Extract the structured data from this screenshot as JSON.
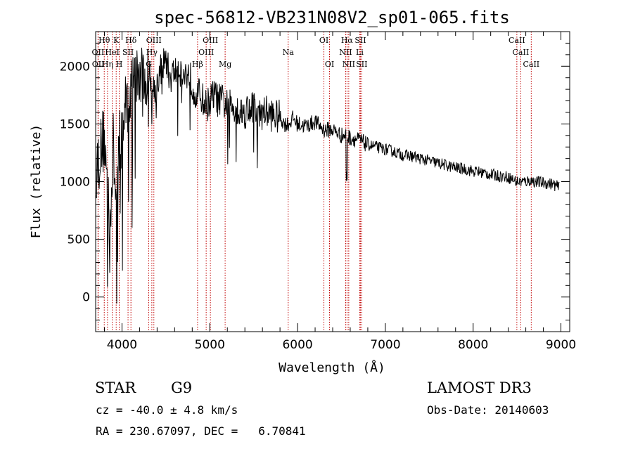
{
  "chart_data": {
    "type": "line",
    "title": "spec-56812-VB231N08V2_sp01-065.fits",
    "xlabel": "Wavelength (Å)",
    "ylabel": "Flux (relative)",
    "xlim": [
      3700,
      9100
    ],
    "ylim": [
      -300,
      2300
    ],
    "xticks": [
      4000,
      5000,
      6000,
      7000,
      8000,
      9000
    ],
    "yticks": [
      0,
      500,
      1000,
      1500,
      2000
    ],
    "series": [
      {
        "name": "flux",
        "x": [
          3700,
          3750,
          3800,
          3850,
          3880,
          3900,
          3930,
          3960,
          4000,
          4050,
          4100,
          4150,
          4200,
          4250,
          4300,
          4350,
          4400,
          4450,
          4500,
          4550,
          4600,
          4650,
          4700,
          4750,
          4800,
          4850,
          4900,
          4950,
          5000,
          5050,
          5100,
          5150,
          5200,
          5250,
          5300,
          5350,
          5400,
          5450,
          5500,
          5550,
          5600,
          5650,
          5700,
          5750,
          5800,
          5850,
          5900,
          5950,
          6000,
          6100,
          6200,
          6300,
          6400,
          6500,
          6550,
          6600,
          6700,
          6800,
          6900,
          7000,
          7100,
          7200,
          7300,
          7400,
          7500,
          7600,
          7700,
          7800,
          7900,
          8000,
          8100,
          8200,
          8300,
          8400,
          8500,
          8550,
          8600,
          8650,
          8700,
          8800,
          8900,
          8980
        ],
        "y": [
          1100,
          1250,
          1400,
          700,
          900,
          1300,
          850,
          1250,
          1450,
          1700,
          1800,
          1900,
          1900,
          1850,
          1950,
          1800,
          1850,
          2000,
          2050,
          1900,
          1950,
          2000,
          1900,
          1950,
          1850,
          1750,
          1750,
          1650,
          1700,
          1750,
          1700,
          1700,
          1650,
          1650,
          1650,
          1600,
          1600,
          1650,
          1650,
          1550,
          1600,
          1600,
          1580,
          1560,
          1560,
          1500,
          1500,
          1550,
          1500,
          1480,
          1520,
          1450,
          1450,
          1400,
          1400,
          1380,
          1360,
          1320,
          1300,
          1280,
          1260,
          1230,
          1220,
          1200,
          1180,
          1160,
          1140,
          1120,
          1110,
          1090,
          1080,
          1060,
          1050,
          1040,
          1000,
          1000,
          1000,
          1010,
          1000,
          990,
          980,
          950
        ]
      }
    ],
    "spectral_lines": [
      {
        "label": "Hθ",
        "wave": 3798,
        "row": 0
      },
      {
        "label": "K",
        "wave": 3934,
        "row": 0
      },
      {
        "label": "Hδ",
        "wave": 4102,
        "row": 0
      },
      {
        "label": "OIII",
        "wave": 4363,
        "row": 0
      },
      {
        "label": "OIII",
        "wave": 5007,
        "row": 0
      },
      {
        "label": "OI",
        "wave": 6300,
        "row": 0
      },
      {
        "label": "Hα",
        "wave": 6563,
        "row": 0
      },
      {
        "label": "SII",
        "wave": 6716,
        "row": 0
      },
      {
        "label": "CaII",
        "wave": 8498,
        "row": 0
      },
      {
        "label": "OII",
        "wave": 3727,
        "row": 1
      },
      {
        "label": "HeI",
        "wave": 3889,
        "row": 1
      },
      {
        "label": "SII",
        "wave": 4069,
        "row": 1
      },
      {
        "label": "Hγ",
        "wave": 4340,
        "row": 1
      },
      {
        "label": "OIII",
        "wave": 4959,
        "row": 1
      },
      {
        "label": "Na",
        "wave": 5893,
        "row": 1
      },
      {
        "label": "NII",
        "wave": 6548,
        "row": 1
      },
      {
        "label": "Li",
        "wave": 6708,
        "row": 1
      },
      {
        "label": "CaII",
        "wave": 8542,
        "row": 1
      },
      {
        "label": "OII",
        "wave": 3729,
        "row": 2
      },
      {
        "label": "Hη",
        "wave": 3835,
        "row": 2
      },
      {
        "label": "H",
        "wave": 3969,
        "row": 2
      },
      {
        "label": "G",
        "wave": 4305,
        "row": 2
      },
      {
        "label": "Hβ",
        "wave": 4861,
        "row": 2
      },
      {
        "label": "Mg",
        "wave": 5175,
        "row": 2
      },
      {
        "label": "OI",
        "wave": 6364,
        "row": 2
      },
      {
        "label": "NII",
        "wave": 6583,
        "row": 2
      },
      {
        "label": "SII",
        "wave": 6731,
        "row": 2
      },
      {
        "label": "CaII",
        "wave": 8662,
        "row": 2
      }
    ],
    "line_color": "#c00000"
  },
  "info": {
    "object_class": "STAR",
    "subclass": "G9",
    "survey": "LAMOST DR3",
    "redshift": "cz = -40.0 ± 4.8 km/s",
    "obs_date": "Obs-Date: 20140603",
    "coords": "RA = 230.67097, DEC =   6.70841"
  }
}
